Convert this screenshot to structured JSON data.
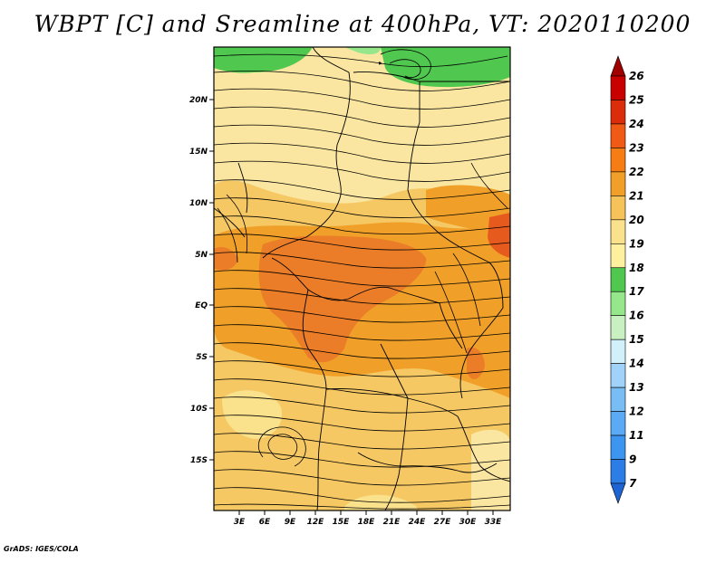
{
  "title": "WBPT [C] and Sreamline at 400hPa, VT: 2020110200",
  "credit": "GrADS: IGES/COLA",
  "map": {
    "lat_labels": [
      "20N",
      "15N",
      "10N",
      "5N",
      "EQ",
      "5S",
      "10S",
      "15S"
    ],
    "lon_labels": [
      "3E",
      "6E",
      "9E",
      "12E",
      "15E",
      "18E",
      "21E",
      "24E",
      "27E",
      "30E",
      "33E"
    ]
  },
  "colorbar": {
    "labels": [
      "7",
      "9",
      "11",
      "12",
      "13",
      "14",
      "15",
      "16",
      "17",
      "18",
      "19",
      "20",
      "21",
      "22",
      "23",
      "24",
      "25",
      "26"
    ],
    "colors": [
      "#1e64d2",
      "#2c7ee6",
      "#3c96f0",
      "#5aaaf5",
      "#78bef5",
      "#a0d2fa",
      "#d2f0fa",
      "#c8f0c0",
      "#96e68c",
      "#50c850",
      "#fff0a0",
      "#fae18c",
      "#f5c35a",
      "#f0a028",
      "#f57d14",
      "#f05a14",
      "#dc2d0a",
      "#c80000",
      "#a00000"
    ]
  },
  "field_colors": {
    "green": "#50c850",
    "light_green": "#96e68c",
    "pale_yellow": "#fae6a0",
    "light_orange": "#f5c864",
    "orange": "#f0a028",
    "dark_orange": "#eb7d28",
    "red_orange": "#e65a1e"
  }
}
